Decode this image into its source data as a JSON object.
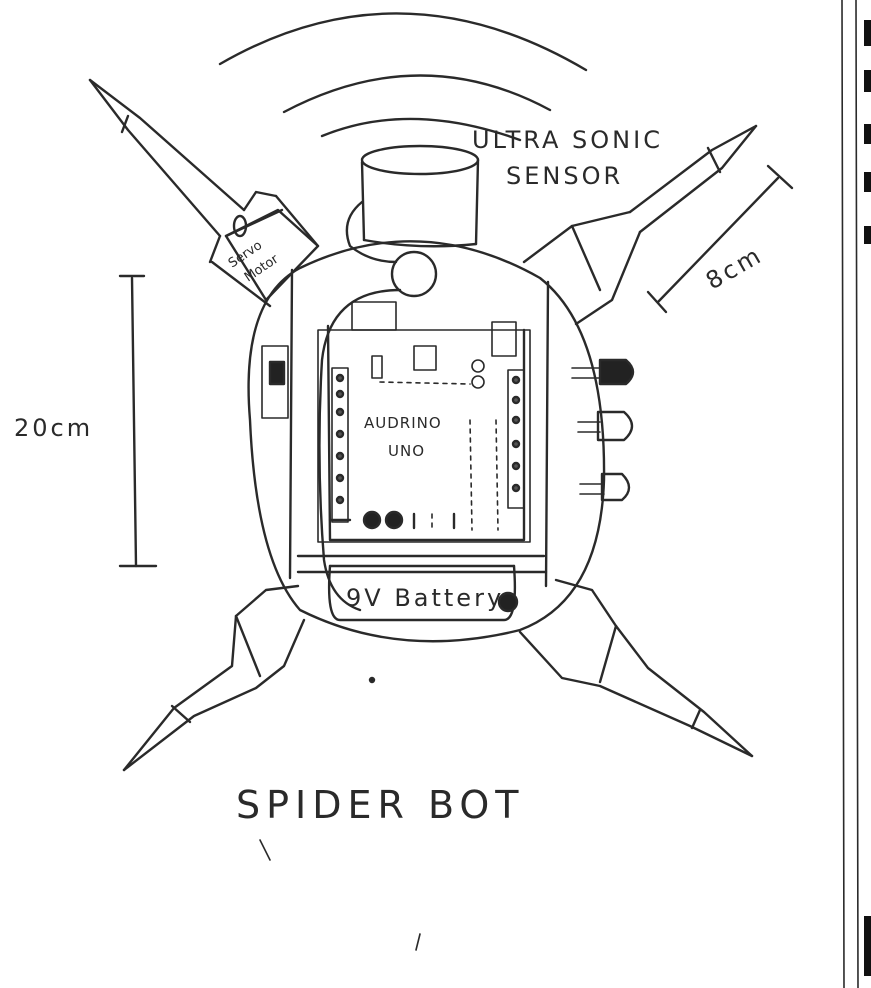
{
  "labels": {
    "sensor_line1": "ULTRA SONIC",
    "sensor_line2": "SENSOR",
    "servo_line1": "Servo",
    "servo_line2": "Motor",
    "board_line1": "AUDRINO",
    "board_line2": "UNO",
    "battery": "9V Battery",
    "height_dim": "20cm",
    "leg_dim": "8cm",
    "title": "SPIDER BOT"
  },
  "colors": {
    "ink": "#2a2a2a",
    "paper": "#ffffff",
    "led_filled": "#222222"
  }
}
